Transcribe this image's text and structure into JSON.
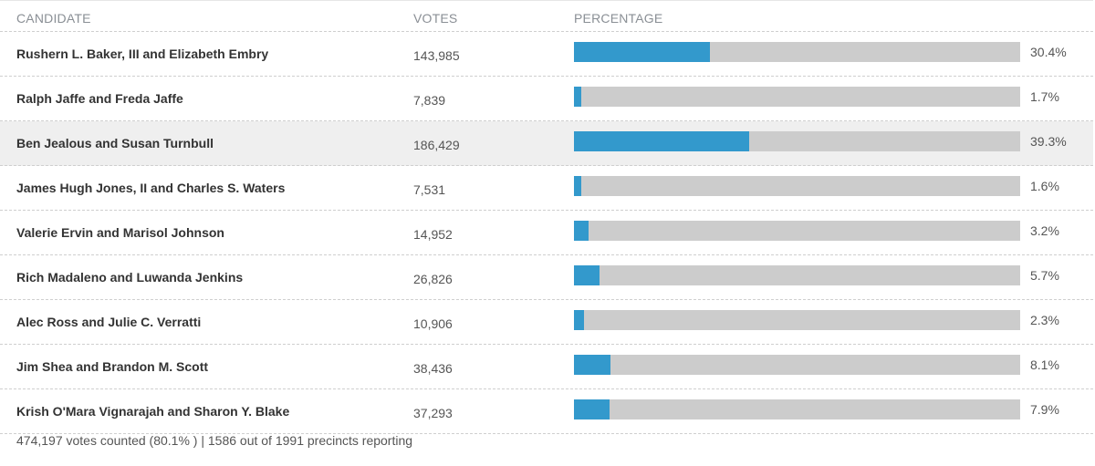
{
  "header": {
    "candidate": "CANDIDATE",
    "votes": "VOTES",
    "percentage": "PERCENTAGE"
  },
  "rows": [
    {
      "name": "Rushern L. Baker, III and Elizabeth Embry",
      "votes": "143,985",
      "percent_label": "30.4%",
      "percent": 30.4
    },
    {
      "name": "Ralph Jaffe and Freda Jaffe",
      "votes": "7,839",
      "percent_label": "1.7%",
      "percent": 1.7
    },
    {
      "name": "Ben Jealous and Susan Turnbull",
      "votes": "186,429",
      "percent_label": "39.3%",
      "percent": 39.3
    },
    {
      "name": "James Hugh Jones, II and Charles S. Waters",
      "votes": "7,531",
      "percent_label": "1.6%",
      "percent": 1.6
    },
    {
      "name": "Valerie Ervin and Marisol Johnson",
      "votes": "14,952",
      "percent_label": "3.2%",
      "percent": 3.2
    },
    {
      "name": "Rich Madaleno and Luwanda Jenkins",
      "votes": "26,826",
      "percent_label": "5.7%",
      "percent": 5.7
    },
    {
      "name": "Alec Ross and Julie C. Verratti",
      "votes": "10,906",
      "percent_label": "2.3%",
      "percent": 2.3
    },
    {
      "name": "Jim Shea and Brandon M. Scott",
      "votes": "38,436",
      "percent_label": "8.1%",
      "percent": 8.1
    },
    {
      "name": "Krish O'Mara Vignarajah and Sharon Y. Blake",
      "votes": "37,293",
      "percent_label": "7.9%",
      "percent": 7.9
    }
  ],
  "highlighted_row": 2,
  "footer": "474,197 votes counted (80.1% ) | 1586 out of 1991 precincts reporting",
  "colors": {
    "bar_fill": "#3399cc",
    "bar_track": "#cccccc",
    "highlight_bg": "#efefef"
  }
}
